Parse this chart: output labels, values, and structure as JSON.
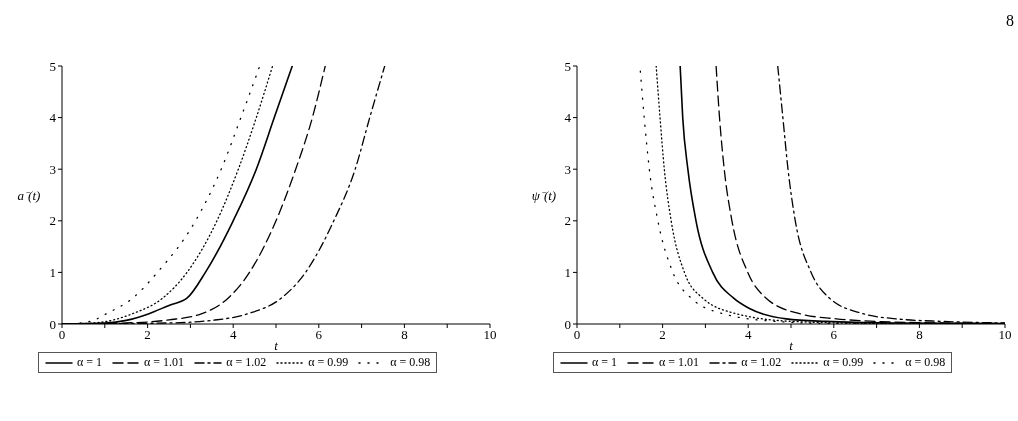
{
  "chart_data": [
    {
      "type": "line",
      "xlabel": "t",
      "ylabel": "a⁻(t)",
      "xlim": [
        0,
        10
      ],
      "ylim": [
        0,
        5
      ],
      "xticks": [
        0,
        {
          "value": 1,
          "label": null
        },
        2,
        {
          "value": 3,
          "label": null
        },
        4,
        {
          "value": 5,
          "label": null
        },
        6,
        {
          "value": 7,
          "label": null
        },
        8,
        {
          "value": 9,
          "label": null
        },
        10
      ],
      "yticks": [
        0,
        1,
        2,
        3,
        4,
        5
      ],
      "legend": "bottom",
      "marker": "none",
      "series": [
        {
          "name": "α = 1",
          "color": "#000000",
          "line_style": "solid",
          "x": [
            0,
            1,
            1.5,
            2,
            2.5,
            2.92,
            3.35,
            4,
            4.54,
            4.96,
            5.38
          ],
          "values": [
            0,
            0.02,
            0.07,
            0.19,
            0.36,
            0.5,
            1,
            2,
            3,
            4,
            5
          ]
        },
        {
          "name": "α = 1.01",
          "color": "#000000",
          "line_style": "dashed",
          "x": [
            0,
            1.5,
            2.5,
            3.27,
            3.88,
            4.38,
            5,
            5.46,
            5.85,
            6.15
          ],
          "values": [
            0,
            0.02,
            0.08,
            0.2,
            0.5,
            1,
            2,
            3,
            4,
            5
          ]
        },
        {
          "name": "α = 1.02",
          "color": "#000000",
          "line_style": "dashdot",
          "x": [
            0,
            2.5,
            3.5,
            4.35,
            5.12,
            5.69,
            6.35,
            6.85,
            7.19,
            7.54
          ],
          "values": [
            0,
            0.02,
            0.07,
            0.2,
            0.5,
            1,
            2,
            3,
            4,
            5
          ]
        },
        {
          "name": "α = 0.99",
          "color": "#000000",
          "line_style": "dotted",
          "x": [
            0,
            0.5,
            1.1,
            1.65,
            2.35,
            2.92,
            3.62,
            4.12,
            4.54,
            4.92
          ],
          "values": [
            0,
            0.01,
            0.06,
            0.2,
            0.5,
            1,
            2,
            3,
            4,
            5
          ]
        },
        {
          "name": "α = 0.98",
          "color": "#000000",
          "line_style": "spacedot",
          "x": [
            0,
            0.3,
            0.7,
            1.04,
            1.65,
            2.23,
            3.12,
            3.72,
            4.18,
            4.62
          ],
          "values": [
            0,
            0.01,
            0.06,
            0.2,
            0.5,
            1,
            2,
            3,
            4,
            5
          ]
        }
      ]
    },
    {
      "type": "line",
      "xlabel": "t",
      "ylabel": "ψ⁻(t)",
      "annotations": [
        "8"
      ],
      "xlim": [
        0,
        10
      ],
      "ylim": [
        0,
        5
      ],
      "xticks": [
        0,
        {
          "value": 1,
          "label": null
        },
        2,
        {
          "value": 3,
          "label": null
        },
        4,
        {
          "value": 5,
          "label": null
        },
        6,
        {
          "value": 7,
          "label": null
        },
        8,
        {
          "value": 9,
          "label": null
        },
        10
      ],
      "yticks": [
        0,
        1,
        2,
        3,
        4,
        5
      ],
      "legend": "bottom",
      "marker": "none",
      "series": [
        {
          "name": "α = 1",
          "color": "#000000",
          "line_style": "solid",
          "x": [
            2.41,
            2.47,
            2.59,
            2.78,
            3.17,
            3.66,
            4.03,
            4.89,
            5.82,
            7.4,
            10
          ],
          "values": [
            5,
            4,
            3,
            2,
            1,
            0.5,
            0.3,
            0.1,
            0.05,
            0.02,
            0.01
          ]
        },
        {
          "name": "α = 1.01",
          "color": "#000000",
          "line_style": "dashed",
          "x": [
            3.25,
            3.33,
            3.44,
            3.62,
            3.99,
            4.42,
            5.2,
            6.06,
            6.99,
            8.55,
            10
          ],
          "values": [
            5,
            4,
            3,
            2,
            1,
            0.5,
            0.2,
            0.1,
            0.05,
            0.02,
            0.01
          ]
        },
        {
          "name": "α = 1.02",
          "color": "#000000",
          "line_style": "dashdot",
          "x": [
            4.69,
            4.81,
            4.93,
            5.1,
            5.47,
            5.9,
            6.68,
            7.46,
            8.55,
            10
          ],
          "values": [
            5,
            4,
            3,
            2,
            1,
            0.5,
            0.2,
            0.1,
            0.05,
            0.02
          ]
        },
        {
          "name": "α = 0.99",
          "color": "#000000",
          "line_style": "dotted",
          "x": [
            1.85,
            1.94,
            2.04,
            2.2,
            2.51,
            2.94,
            3.72,
            5.04,
            7,
            10
          ],
          "values": [
            5,
            4,
            3,
            2,
            1,
            0.5,
            0.2,
            0.05,
            0.01,
            0
          ]
        },
        {
          "name": "α = 0.98",
          "color": "#000000",
          "line_style": "spacedot",
          "x": [
            1.48,
            1.57,
            1.69,
            1.89,
            2.24,
            2.67,
            3.41,
            4.65,
            6,
            10
          ],
          "values": [
            4.9,
            4,
            3,
            2,
            1,
            0.5,
            0.2,
            0.05,
            0.01,
            0
          ]
        }
      ]
    }
  ]
}
